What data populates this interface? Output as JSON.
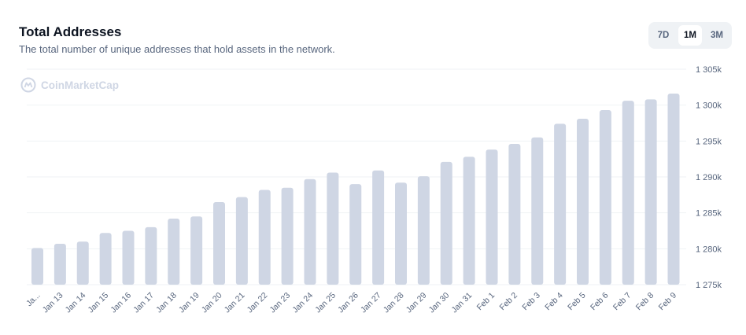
{
  "header": {
    "title": "Total Addresses",
    "subtitle": "The total number of unique addresses that hold assets in the network."
  },
  "range_selector": {
    "options": [
      "7D",
      "1M",
      "3M"
    ],
    "active": "1M"
  },
  "watermark": "CoinMarketCap",
  "colors": {
    "bar": "#cfd6e4",
    "grid": "#eff2f5",
    "text_secondary": "#58667e",
    "text_primary": "#0d1421"
  },
  "chart_data": {
    "type": "bar",
    "categories": [
      "Ja...",
      "Jan 13",
      "Jan 14",
      "Jan 15",
      "Jan 16",
      "Jan 17",
      "Jan 18",
      "Jan 19",
      "Jan 20",
      "Jan 21",
      "Jan 22",
      "Jan 23",
      "Jan 24",
      "Jan 25",
      "Jan 26",
      "Jan 27",
      "Jan 28",
      "Jan 29",
      "Jan 30",
      "Jan 31",
      "Feb 1",
      "Feb 2",
      "Feb 3",
      "Feb 4",
      "Feb 5",
      "Feb 6",
      "Feb 7",
      "Feb 8",
      "Feb 9"
    ],
    "values": [
      1280100,
      1280700,
      1281000,
      1282200,
      1282500,
      1283000,
      1284200,
      1284500,
      1286500,
      1287200,
      1288200,
      1288500,
      1289700,
      1290600,
      1289000,
      1290900,
      1289200,
      1290100,
      1292100,
      1292800,
      1293800,
      1294600,
      1295500,
      1297400,
      1298100,
      1299300,
      1300600,
      1300800,
      1301600
    ],
    "yticks": [
      1275000,
      1280000,
      1285000,
      1290000,
      1295000,
      1300000,
      1305000
    ],
    "ytick_labels": [
      "1 275k",
      "1 280k",
      "1 285k",
      "1 290k",
      "1 295k",
      "1 300k",
      "1 305k"
    ],
    "ylim": [
      1275000,
      1305000
    ],
    "y_axis_position": "right",
    "grid": true,
    "title": "",
    "xlabel": "",
    "ylabel": ""
  }
}
